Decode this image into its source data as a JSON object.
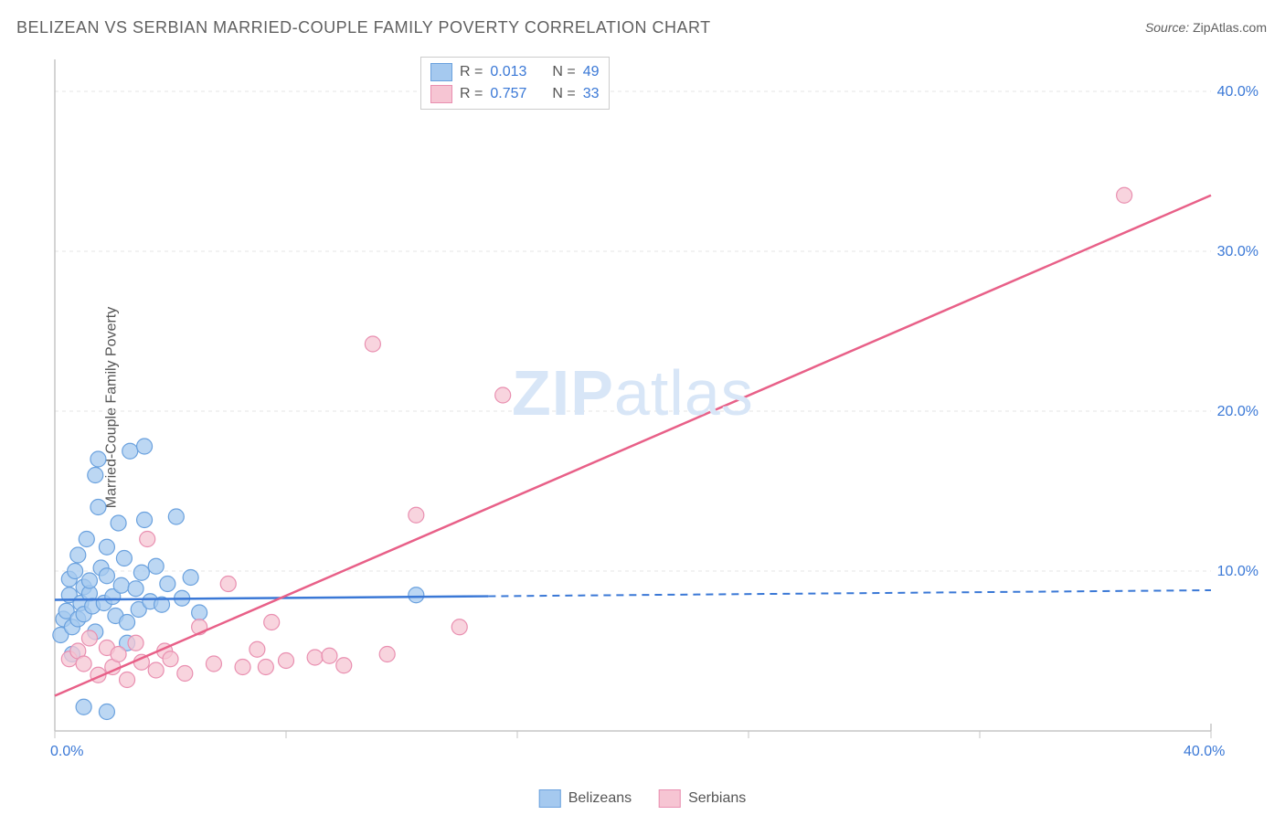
{
  "title": "BELIZEAN VS SERBIAN MARRIED-COUPLE FAMILY POVERTY CORRELATION CHART",
  "source_label": "Source:",
  "source_value": "ZipAtlas.com",
  "ylabel": "Married-Couple Family Poverty",
  "watermark_a": "ZIP",
  "watermark_b": "atlas",
  "chart": {
    "type": "scatter",
    "xlim": [
      0,
      40
    ],
    "ylim": [
      0,
      42
    ],
    "x_tick_min_label": "0.0%",
    "x_tick_max_label": "40.0%",
    "y_ticks": [
      10,
      20,
      30,
      40
    ],
    "y_tick_labels": [
      "10.0%",
      "20.0%",
      "30.0%",
      "40.0%"
    ],
    "x_minor_ticks": [
      0,
      8,
      16,
      24,
      32,
      40
    ],
    "grid_color": "#e4e4e4",
    "axis_color": "#c5c5c5",
    "series": [
      {
        "name": "Belizeans",
        "marker_color": "#a5c9ef",
        "marker_border": "#6aa1de",
        "line_color": "#3a78d6",
        "r": 0.013,
        "n": 49,
        "trend": {
          "x1": 0,
          "y1": 8.2,
          "x2": 40,
          "y2": 8.8,
          "solid_until_x": 15
        },
        "points": [
          [
            0.2,
            6
          ],
          [
            0.3,
            7
          ],
          [
            0.4,
            7.5
          ],
          [
            0.5,
            8.5
          ],
          [
            0.5,
            9.5
          ],
          [
            0.6,
            6.5
          ],
          [
            0.7,
            10
          ],
          [
            0.8,
            11
          ],
          [
            0.8,
            7
          ],
          [
            0.9,
            8
          ],
          [
            1.0,
            9
          ],
          [
            1.0,
            7.3
          ],
          [
            1.1,
            12
          ],
          [
            1.2,
            8.6
          ],
          [
            1.2,
            9.4
          ],
          [
            1.3,
            7.8
          ],
          [
            1.4,
            6.2
          ],
          [
            1.4,
            16
          ],
          [
            1.5,
            17
          ],
          [
            1.5,
            14
          ],
          [
            1.6,
            10.2
          ],
          [
            1.7,
            8
          ],
          [
            1.8,
            9.7
          ],
          [
            1.8,
            11.5
          ],
          [
            2.0,
            8.4
          ],
          [
            2.1,
            7.2
          ],
          [
            2.2,
            13
          ],
          [
            2.3,
            9.1
          ],
          [
            2.4,
            10.8
          ],
          [
            2.5,
            6.8
          ],
          [
            2.6,
            17.5
          ],
          [
            2.8,
            8.9
          ],
          [
            2.9,
            7.6
          ],
          [
            3.0,
            9.9
          ],
          [
            3.1,
            13.2
          ],
          [
            3.1,
            17.8
          ],
          [
            3.3,
            8.1
          ],
          [
            3.5,
            10.3
          ],
          [
            3.7,
            7.9
          ],
          [
            3.9,
            9.2
          ],
          [
            4.2,
            13.4
          ],
          [
            4.4,
            8.3
          ],
          [
            4.7,
            9.6
          ],
          [
            5.0,
            7.4
          ],
          [
            1.0,
            1.5
          ],
          [
            1.8,
            1.2
          ],
          [
            2.5,
            5.5
          ],
          [
            0.6,
            4.8
          ],
          [
            12.5,
            8.5
          ]
        ]
      },
      {
        "name": "Serbians",
        "marker_color": "#f6c5d3",
        "marker_border": "#e98fb0",
        "line_color": "#e86088",
        "r": 0.757,
        "n": 33,
        "trend": {
          "x1": 0,
          "y1": 2.2,
          "x2": 40,
          "y2": 33.5,
          "solid_until_x": 40
        },
        "points": [
          [
            0.5,
            4.5
          ],
          [
            0.8,
            5
          ],
          [
            1.0,
            4.2
          ],
          [
            1.2,
            5.8
          ],
          [
            1.5,
            3.5
          ],
          [
            1.8,
            5.2
          ],
          [
            2.0,
            4.0
          ],
          [
            2.2,
            4.8
          ],
          [
            2.5,
            3.2
          ],
          [
            2.8,
            5.5
          ],
          [
            3.0,
            4.3
          ],
          [
            3.2,
            12
          ],
          [
            3.5,
            3.8
          ],
          [
            3.8,
            5.0
          ],
          [
            4.0,
            4.5
          ],
          [
            4.5,
            3.6
          ],
          [
            5.0,
            6.5
          ],
          [
            5.5,
            4.2
          ],
          [
            6.0,
            9.2
          ],
          [
            6.5,
            4.0
          ],
          [
            7.0,
            5.1
          ],
          [
            7.5,
            6.8
          ],
          [
            8.0,
            4.4
          ],
          [
            9.0,
            4.6
          ],
          [
            10.0,
            4.1
          ],
          [
            11.0,
            24.2
          ],
          [
            12.5,
            13.5
          ],
          [
            14.0,
            6.5
          ],
          [
            15.5,
            21
          ],
          [
            11.5,
            4.8
          ],
          [
            7.3,
            4.0
          ],
          [
            9.5,
            4.7
          ],
          [
            37,
            33.5
          ]
        ]
      }
    ]
  },
  "legend_stats": {
    "r_label": "R =",
    "n_label": "N ="
  },
  "bottom_legend": [
    "Belizeans",
    "Serbians"
  ]
}
